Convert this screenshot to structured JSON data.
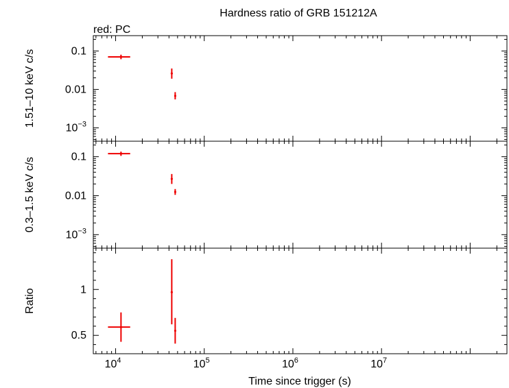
{
  "chart_data": {
    "type": "scatter",
    "title": "Hardness ratio of GRB 151212A",
    "subtitle": "red: PC",
    "xlabel": "Time since trigger (s)",
    "x_scale": "log",
    "xlim": [
      5600,
      260000000
    ],
    "x_ticks": [
      {
        "value": 10000,
        "base": "10",
        "exp": "4"
      },
      {
        "value": 100000,
        "base": "10",
        "exp": "5"
      },
      {
        "value": 1000000,
        "base": "10",
        "exp": "6"
      },
      {
        "value": 10000000,
        "base": "10",
        "exp": "7"
      }
    ],
    "series_color": "#ee0000",
    "grid": false,
    "panels": [
      {
        "ylabel": "1.51–10 keV c/s",
        "y_scale": "log",
        "ylim": [
          0.00045,
          0.25
        ],
        "y_ticks": [
          {
            "value": 0.1,
            "text": "0.1"
          },
          {
            "value": 0.01,
            "text": "0.01"
          },
          {
            "value": 0.001,
            "base": "10",
            "exp": "−3"
          }
        ],
        "points": [
          {
            "x": 11500,
            "y": 0.07,
            "xlo": 8200,
            "xhi": 14600,
            "ylo": 0.061,
            "yhi": 0.08
          },
          {
            "x": 43000,
            "y": 0.026,
            "xlo": 42500,
            "xhi": 43500,
            "ylo": 0.019,
            "yhi": 0.035
          },
          {
            "x": 47000,
            "y": 0.0068,
            "xlo": 46500,
            "xhi": 47500,
            "ylo": 0.0055,
            "yhi": 0.0085
          }
        ]
      },
      {
        "ylabel": "0.3–1.5 keV c/s",
        "y_scale": "log",
        "ylim": [
          0.00045,
          0.25
        ],
        "y_ticks": [
          {
            "value": 0.1,
            "text": "0.1"
          },
          {
            "value": 0.01,
            "text": "0.01"
          },
          {
            "value": 0.001,
            "base": "10",
            "exp": "−3"
          }
        ],
        "points": [
          {
            "x": 11500,
            "y": 0.12,
            "xlo": 8200,
            "xhi": 14600,
            "ylo": 0.105,
            "yhi": 0.135
          },
          {
            "x": 43000,
            "y": 0.027,
            "xlo": 42500,
            "xhi": 43500,
            "ylo": 0.02,
            "yhi": 0.036
          },
          {
            "x": 47000,
            "y": 0.0125,
            "xlo": 46500,
            "xhi": 47500,
            "ylo": 0.0105,
            "yhi": 0.0148
          }
        ]
      },
      {
        "ylabel": "Ratio",
        "y_scale": "linear",
        "ylim": [
          0.3,
          1.45
        ],
        "y_ticks": [
          {
            "value": 1,
            "text": "1"
          },
          {
            "value": 0.5,
            "text": "0.5"
          }
        ],
        "points": [
          {
            "x": 11500,
            "y": 0.59,
            "xlo": 8200,
            "xhi": 14600,
            "ylo": 0.43,
            "yhi": 0.75
          },
          {
            "x": 43000,
            "y": 0.97,
            "xlo": 42500,
            "xhi": 43500,
            "ylo": 0.62,
            "yhi": 1.33
          },
          {
            "x": 47000,
            "y": 0.55,
            "xlo": 46500,
            "xhi": 47500,
            "ylo": 0.41,
            "yhi": 0.69
          }
        ]
      }
    ]
  }
}
